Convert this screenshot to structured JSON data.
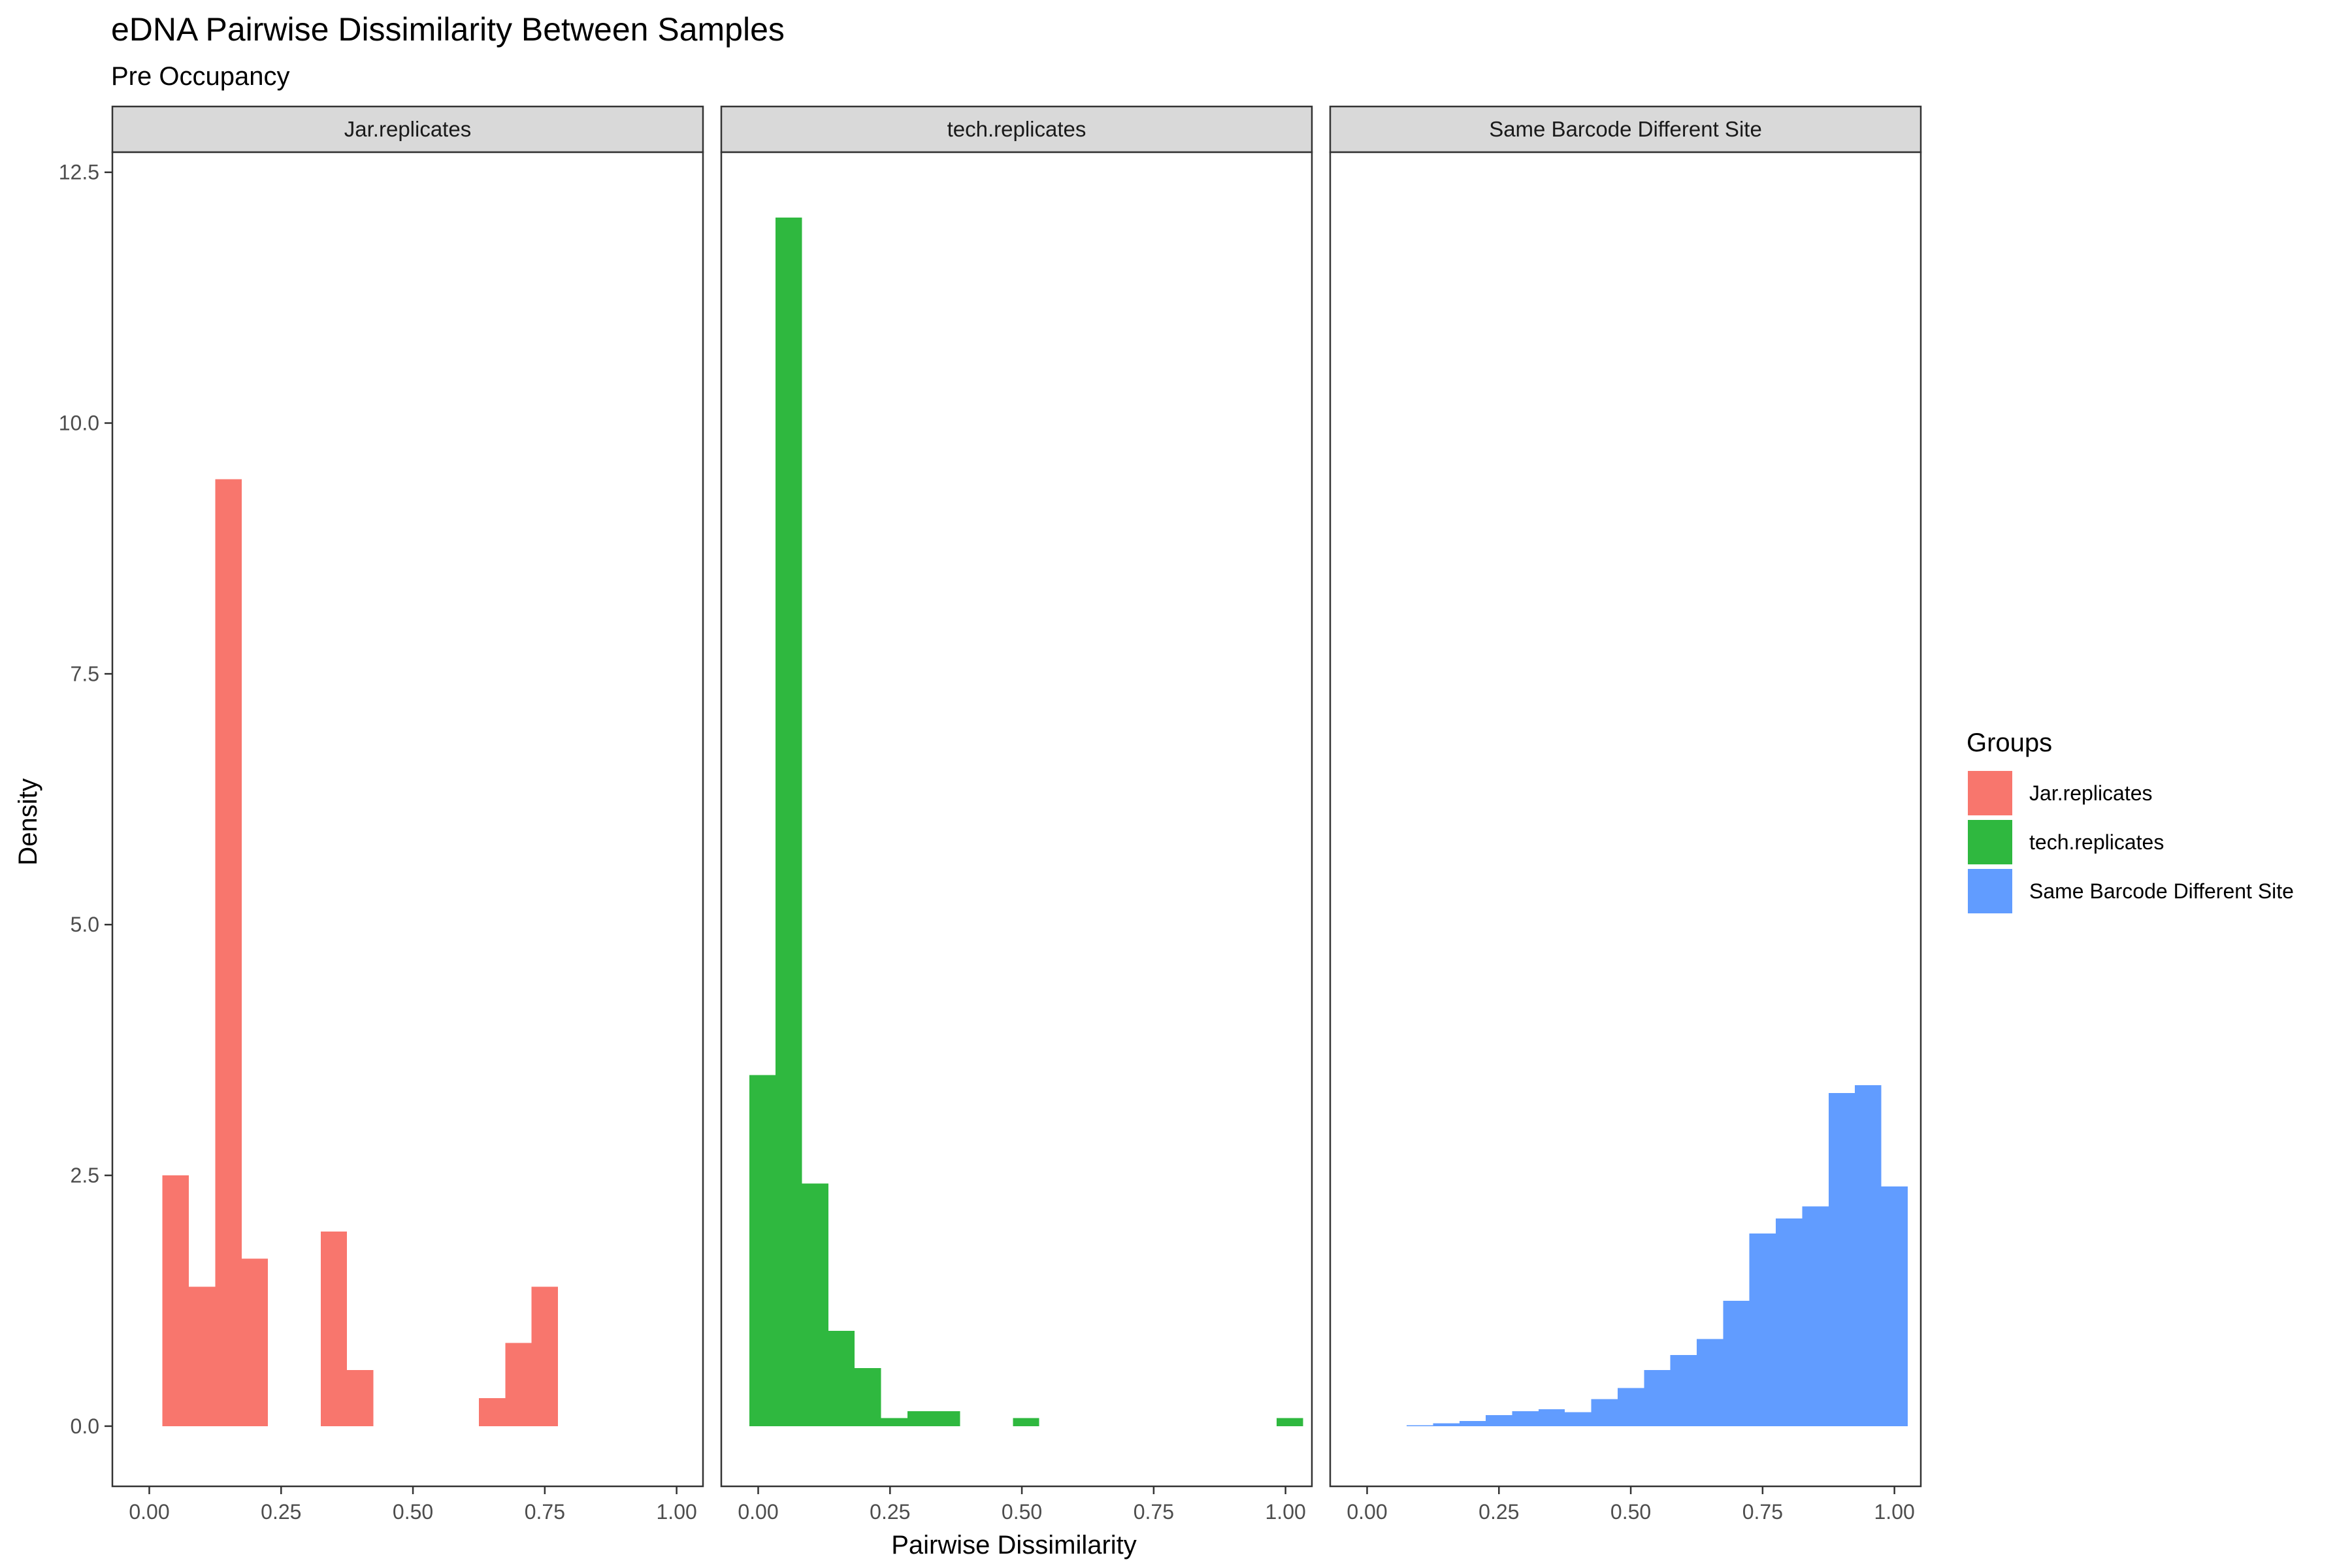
{
  "chart_data": {
    "type": "bar",
    "title": "eDNA Pairwise Dissimilarity Between Samples",
    "subtitle": "Pre Occupancy",
    "xlabel": "Pairwise Dissimilarity",
    "ylabel": "Density",
    "xlim": [
      -0.07,
      1.05
    ],
    "ylim": [
      -0.6,
      12.7
    ],
    "x_ticks": [
      0.0,
      0.25,
      0.5,
      0.75,
      1.0
    ],
    "x_tick_labels": [
      "0.00",
      "0.25",
      "0.50",
      "0.75",
      "1.00"
    ],
    "y_ticks": [
      0.0,
      2.5,
      5.0,
      7.5,
      10.0,
      12.5
    ],
    "y_tick_labels": [
      "0.0",
      "2.5",
      "5.0",
      "7.5",
      "10.0",
      "12.5"
    ],
    "grid": false,
    "legend_position": "right",
    "legend_title": "Groups",
    "panels": [
      {
        "name": "Jar.replicates",
        "color": "#F8766D",
        "bins": [
          {
            "x0": 0.025,
            "x1": 0.075,
            "y": 2.5
          },
          {
            "x0": 0.075,
            "x1": 0.125,
            "y": 1.39
          },
          {
            "x0": 0.125,
            "x1": 0.175,
            "y": 9.44
          },
          {
            "x0": 0.175,
            "x1": 0.225,
            "y": 1.67
          },
          {
            "x0": 0.325,
            "x1": 0.375,
            "y": 1.94
          },
          {
            "x0": 0.375,
            "x1": 0.425,
            "y": 0.56
          },
          {
            "x0": 0.625,
            "x1": 0.675,
            "y": 0.28
          },
          {
            "x0": 0.675,
            "x1": 0.725,
            "y": 0.83
          },
          {
            "x0": 0.725,
            "x1": 0.775,
            "y": 1.39
          }
        ]
      },
      {
        "name": "tech.replicates",
        "color": "#2FB83F",
        "bins": [
          {
            "x0": -0.017,
            "x1": 0.033,
            "y": 3.5
          },
          {
            "x0": 0.033,
            "x1": 0.083,
            "y": 12.05
          },
          {
            "x0": 0.083,
            "x1": 0.133,
            "y": 2.42
          },
          {
            "x0": 0.133,
            "x1": 0.183,
            "y": 0.95
          },
          {
            "x0": 0.183,
            "x1": 0.233,
            "y": 0.58
          },
          {
            "x0": 0.233,
            "x1": 0.283,
            "y": 0.08
          },
          {
            "x0": 0.283,
            "x1": 0.333,
            "y": 0.15
          },
          {
            "x0": 0.333,
            "x1": 0.383,
            "y": 0.15
          },
          {
            "x0": 0.483,
            "x1": 0.533,
            "y": 0.08
          },
          {
            "x0": 0.983,
            "x1": 1.033,
            "y": 0.08
          }
        ]
      },
      {
        "name": "Same Barcode Different Site",
        "color": "#619CFF",
        "bins": [
          {
            "x0": 0.075,
            "x1": 0.125,
            "y": 0.01
          },
          {
            "x0": 0.125,
            "x1": 0.175,
            "y": 0.03
          },
          {
            "x0": 0.175,
            "x1": 0.225,
            "y": 0.05
          },
          {
            "x0": 0.225,
            "x1": 0.275,
            "y": 0.11
          },
          {
            "x0": 0.275,
            "x1": 0.325,
            "y": 0.15
          },
          {
            "x0": 0.325,
            "x1": 0.375,
            "y": 0.17
          },
          {
            "x0": 0.375,
            "x1": 0.425,
            "y": 0.14
          },
          {
            "x0": 0.425,
            "x1": 0.475,
            "y": 0.27
          },
          {
            "x0": 0.475,
            "x1": 0.525,
            "y": 0.38
          },
          {
            "x0": 0.525,
            "x1": 0.575,
            "y": 0.56
          },
          {
            "x0": 0.575,
            "x1": 0.625,
            "y": 0.71
          },
          {
            "x0": 0.625,
            "x1": 0.675,
            "y": 0.87
          },
          {
            "x0": 0.675,
            "x1": 0.725,
            "y": 1.25
          },
          {
            "x0": 0.725,
            "x1": 0.775,
            "y": 1.92
          },
          {
            "x0": 0.775,
            "x1": 0.825,
            "y": 2.07
          },
          {
            "x0": 0.825,
            "x1": 0.875,
            "y": 2.19
          },
          {
            "x0": 0.875,
            "x1": 0.925,
            "y": 3.32
          },
          {
            "x0": 0.925,
            "x1": 0.975,
            "y": 3.4
          },
          {
            "x0": 0.975,
            "x1": 1.025,
            "y": 2.39
          }
        ]
      }
    ]
  }
}
